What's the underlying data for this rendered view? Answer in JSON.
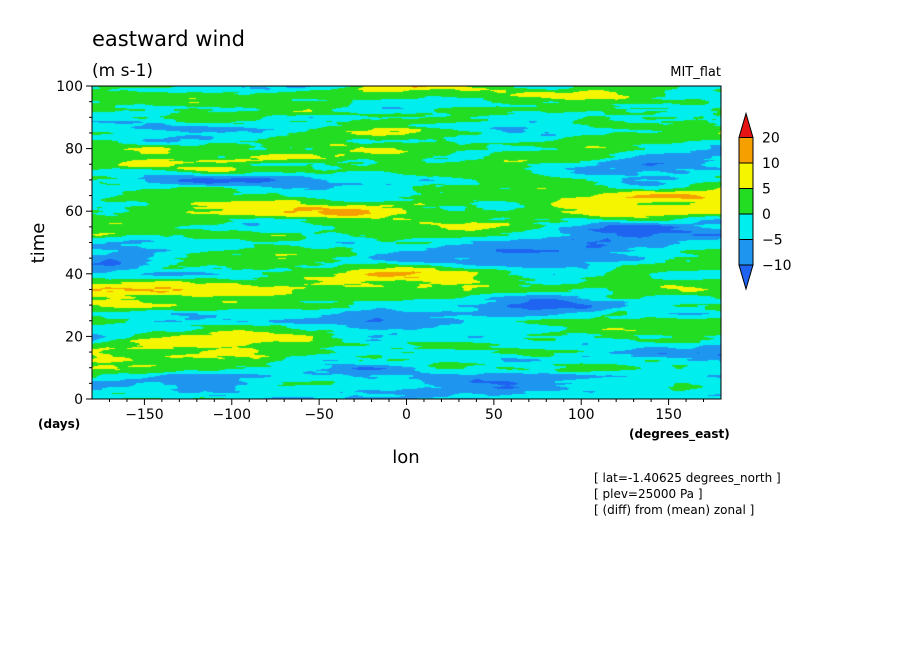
{
  "chart_data": {
    "type": "heatmap",
    "title": "eastward wind",
    "units": "(m s-1)",
    "model": "MIT_flat",
    "xlabel": "lon",
    "ylabel": "time",
    "x_units": "(degrees_east)",
    "y_units": "(days)",
    "xlim": [
      -180,
      180
    ],
    "ylim": [
      0,
      100
    ],
    "xticks": [
      -150,
      -100,
      -50,
      0,
      50,
      100,
      150
    ],
    "yticks": [
      0,
      20,
      40,
      60,
      80,
      100
    ],
    "colorbar": {
      "levels": [
        -10,
        -5,
        0,
        5,
        10,
        20
      ],
      "level_labels": [
        "-10",
        "-5",
        "0",
        "5",
        "10",
        "20"
      ],
      "colors": [
        "#1e64f0",
        "#1e96f0",
        "#00eeee",
        "#22dd22",
        "#f5f500",
        "#f5a000",
        "#e61414"
      ],
      "extend": "both"
    },
    "annotations": [
      "[ lat=-1.40625 degrees_north ]",
      "[ plev=25000 Pa ]",
      "[ (diff) from (mean) zonal ]"
    ]
  }
}
